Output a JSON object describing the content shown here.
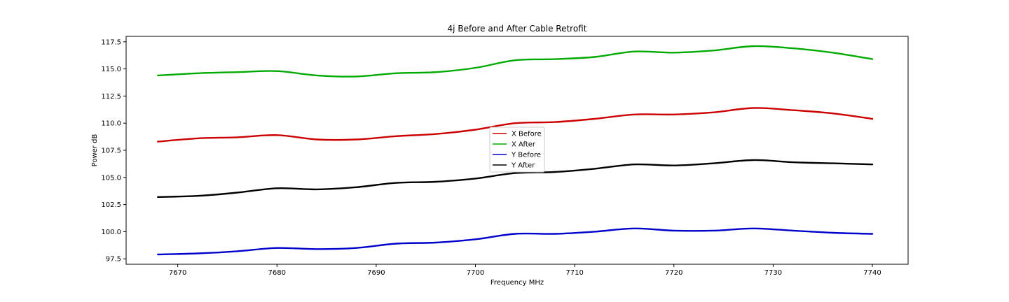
{
  "chart_data": {
    "type": "line",
    "title": "4j Before and After Cable Retrofit",
    "xlabel": "Frequency MHz",
    "ylabel": "Power dB",
    "xlim": [
      7664.8,
      7743.6
    ],
    "ylim": [
      97.0,
      118.0
    ],
    "xticks": [
      7670,
      7680,
      7690,
      7700,
      7710,
      7720,
      7730,
      7740
    ],
    "yticks": [
      97.5,
      100.0,
      102.5,
      105.0,
      107.5,
      110.0,
      112.5,
      115.0,
      117.5
    ],
    "grid": false,
    "legend": "center",
    "x": [
      7668,
      7672,
      7676,
      7680,
      7684,
      7688,
      7692,
      7696,
      7700,
      7704,
      7708,
      7712,
      7716,
      7720,
      7724,
      7728,
      7732,
      7736,
      7740
    ],
    "series": [
      {
        "name": "X Before",
        "color": "#cc0000",
        "values": [
          108.3,
          108.6,
          108.7,
          108.9,
          108.5,
          108.5,
          108.8,
          109.0,
          109.4,
          110.0,
          110.1,
          110.4,
          110.8,
          110.8,
          111.0,
          111.4,
          111.2,
          110.9,
          110.4
        ]
      },
      {
        "name": "X After",
        "color": "#00aa00",
        "values": [
          114.4,
          114.6,
          114.7,
          114.8,
          114.4,
          114.3,
          114.6,
          114.7,
          115.1,
          115.8,
          115.9,
          116.1,
          116.6,
          116.5,
          116.7,
          117.1,
          116.9,
          116.5,
          115.9
        ]
      },
      {
        "name": "Y Before",
        "color": "#0000cc",
        "values": [
          97.9,
          98.0,
          98.2,
          98.5,
          98.4,
          98.5,
          98.9,
          99.0,
          99.3,
          99.8,
          99.8,
          100.0,
          100.3,
          100.1,
          100.1,
          100.3,
          100.1,
          99.9,
          99.8
        ]
      },
      {
        "name": "Y After",
        "color": "#000000",
        "values": [
          103.2,
          103.3,
          103.6,
          104.0,
          103.9,
          104.1,
          104.5,
          104.6,
          104.9,
          105.4,
          105.5,
          105.8,
          106.2,
          106.1,
          106.3,
          106.6,
          106.4,
          106.3,
          106.2
        ]
      }
    ]
  }
}
